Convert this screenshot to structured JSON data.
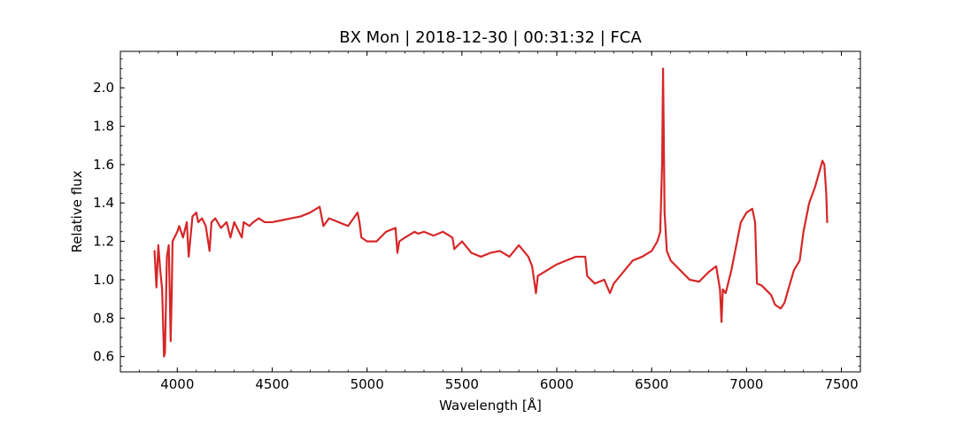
{
  "chart_data": {
    "type": "line",
    "title": "BX Mon | 2018-12-30 | 00:31:32 | FCA",
    "xlabel": "Wavelength [Å]",
    "ylabel": "Relative flux",
    "xlim": [
      3700,
      7600
    ],
    "ylim": [
      0.52,
      2.19
    ],
    "xticks": [
      4000,
      4500,
      5000,
      5500,
      6000,
      6500,
      7000,
      7500
    ],
    "yticks": [
      0.6,
      0.8,
      1.0,
      1.2,
      1.4,
      1.6,
      1.8,
      2.0
    ],
    "x_minor_step": 100,
    "y_minor_step": 0.05,
    "grid": false,
    "series": [
      {
        "color": "#d62728",
        "x": [
          3880,
          3890,
          3900,
          3910,
          3920,
          3930,
          3935,
          3945,
          3955,
          3965,
          3970,
          3975,
          3985,
          4000,
          4010,
          4030,
          4050,
          4060,
          4080,
          4100,
          4110,
          4130,
          4150,
          4170,
          4180,
          4200,
          4230,
          4260,
          4280,
          4300,
          4320,
          4340,
          4350,
          4380,
          4400,
          4430,
          4460,
          4500,
          4550,
          4600,
          4650,
          4700,
          4750,
          4770,
          4800,
          4850,
          4900,
          4950,
          4960,
          4970,
          5000,
          5050,
          5100,
          5150,
          5160,
          5170,
          5200,
          5250,
          5270,
          5300,
          5350,
          5400,
          5450,
          5460,
          5500,
          5550,
          5600,
          5650,
          5700,
          5750,
          5800,
          5850,
          5870,
          5890,
          5900,
          5950,
          6000,
          6050,
          6100,
          6150,
          6160,
          6200,
          6250,
          6280,
          6300,
          6350,
          6400,
          6450,
          6500,
          6530,
          6545,
          6555,
          6560,
          6568,
          6580,
          6600,
          6650,
          6700,
          6750,
          6800,
          6840,
          6860,
          6868,
          6875,
          6890,
          6920,
          6950,
          6970,
          7000,
          7030,
          7045,
          7055,
          7080,
          7100,
          7130,
          7150,
          7180,
          7200,
          7220,
          7250,
          7280,
          7300,
          7330,
          7360,
          7380,
          7400,
          7410,
          7420,
          7425
        ],
        "y": [
          1.15,
          0.96,
          1.18,
          1.05,
          0.95,
          0.6,
          0.62,
          1.12,
          1.18,
          0.68,
          0.9,
          1.2,
          1.22,
          1.25,
          1.28,
          1.22,
          1.3,
          1.12,
          1.33,
          1.35,
          1.3,
          1.32,
          1.28,
          1.15,
          1.3,
          1.32,
          1.27,
          1.3,
          1.22,
          1.3,
          1.26,
          1.22,
          1.3,
          1.28,
          1.3,
          1.32,
          1.3,
          1.3,
          1.31,
          1.32,
          1.33,
          1.35,
          1.38,
          1.28,
          1.32,
          1.3,
          1.28,
          1.35,
          1.3,
          1.22,
          1.2,
          1.2,
          1.25,
          1.27,
          1.14,
          1.2,
          1.22,
          1.25,
          1.24,
          1.25,
          1.23,
          1.25,
          1.22,
          1.16,
          1.2,
          1.14,
          1.12,
          1.14,
          1.15,
          1.12,
          1.18,
          1.12,
          1.07,
          0.93,
          1.02,
          1.05,
          1.08,
          1.1,
          1.12,
          1.12,
          1.02,
          0.98,
          1.0,
          0.93,
          0.98,
          1.04,
          1.1,
          1.12,
          1.15,
          1.2,
          1.25,
          1.6,
          2.1,
          1.35,
          1.15,
          1.1,
          1.05,
          1.0,
          0.99,
          1.04,
          1.07,
          0.95,
          0.78,
          0.95,
          0.93,
          1.05,
          1.2,
          1.3,
          1.35,
          1.37,
          1.3,
          0.98,
          0.97,
          0.95,
          0.92,
          0.87,
          0.85,
          0.88,
          0.95,
          1.05,
          1.1,
          1.25,
          1.4,
          1.48,
          1.55,
          1.62,
          1.6,
          1.45,
          1.3
        ]
      }
    ]
  }
}
